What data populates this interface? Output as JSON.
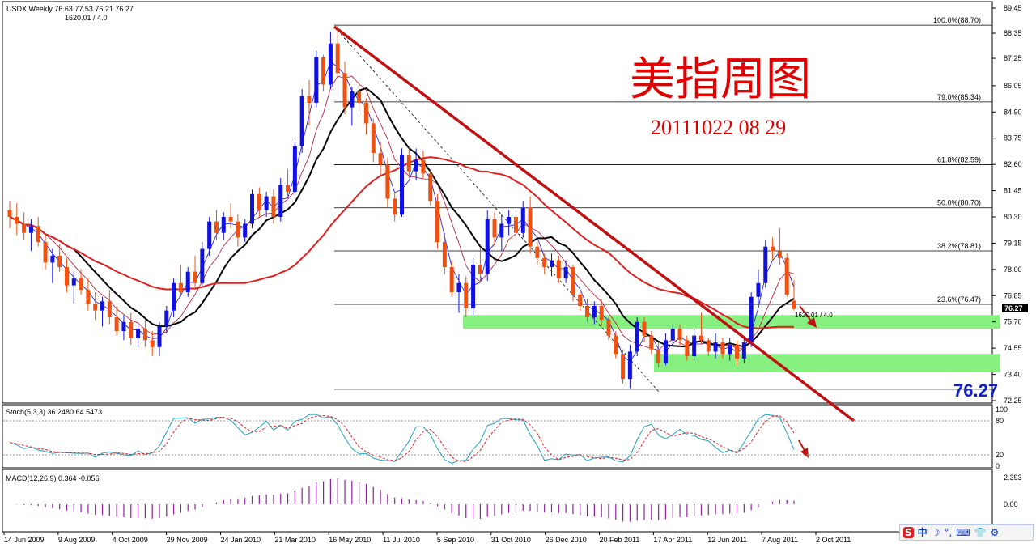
{
  "window": {
    "symbol_line": "USDX,Weekly  76.63 77.53 76.21 76.27",
    "sub_line": "1620.01 / 4.0",
    "current_price": "76.27",
    "fib_tag": "1620.01 / 4.0"
  },
  "overlay": {
    "title_cn": "美指周图",
    "date_text": "20111022 08 29"
  },
  "chart_data": [
    {
      "type": "candlestick",
      "title": "USDX,Weekly",
      "price_axis_ticks": [
        "89.45",
        "88.35",
        "87.25",
        "86.05",
        "84.90",
        "83.75",
        "82.60",
        "81.45",
        "80.30",
        "79.15",
        "78.00",
        "76.85",
        "75.70",
        "74.55",
        "73.40",
        "72.25"
      ],
      "ylim": [
        71.8,
        89.7
      ],
      "x_tick_labels": [
        "14 Jun 2009",
        "9 Aug 2009",
        "4 Oct 2009",
        "29 Nov 2009",
        "24 Jan 2010",
        "21 Mar 2010",
        "16 May 2010",
        "11 Jul 2010",
        "5 Sep 2010",
        "31 Oct 2010",
        "26 Dec 2010",
        "20 Feb 2011",
        "17 Apr 2011",
        "12 Jun 2011",
        "7 Aug 2011",
        "2 Oct 2011"
      ],
      "ohlc": [
        [
          80.6,
          81.0,
          79.8,
          80.3
        ],
        [
          80.3,
          80.9,
          79.5,
          80.0
        ],
        [
          80.0,
          80.5,
          79.3,
          79.6
        ],
        [
          79.6,
          80.2,
          78.8,
          79.9
        ],
        [
          79.9,
          80.3,
          79.0,
          79.2
        ],
        [
          79.2,
          79.6,
          78.0,
          78.3
        ],
        [
          78.3,
          78.9,
          77.4,
          78.6
        ],
        [
          78.6,
          79.1,
          77.9,
          78.1
        ],
        [
          78.1,
          78.5,
          77.0,
          77.3
        ],
        [
          77.3,
          77.9,
          76.5,
          77.6
        ],
        [
          77.6,
          78.0,
          76.9,
          77.1
        ],
        [
          77.1,
          77.6,
          76.2,
          76.5
        ],
        [
          76.5,
          77.0,
          75.8,
          76.2
        ],
        [
          76.2,
          76.8,
          75.5,
          76.6
        ],
        [
          76.6,
          77.1,
          75.6,
          75.9
        ],
        [
          75.9,
          76.4,
          75.1,
          75.3
        ],
        [
          75.3,
          76.0,
          74.9,
          75.7
        ],
        [
          75.7,
          76.1,
          74.7,
          75.0
        ],
        [
          75.0,
          75.6,
          74.6,
          75.4
        ],
        [
          75.4,
          75.8,
          74.6,
          74.9
        ],
        [
          74.9,
          75.3,
          74.2,
          74.6
        ],
        [
          74.6,
          75.7,
          74.2,
          75.5
        ],
        [
          75.5,
          76.4,
          75.2,
          76.2
        ],
        [
          76.2,
          77.6,
          75.9,
          77.4
        ],
        [
          77.4,
          78.2,
          76.8,
          77.0
        ],
        [
          77.0,
          78.1,
          76.8,
          77.9
        ],
        [
          77.9,
          78.6,
          77.1,
          77.4
        ],
        [
          77.4,
          79.2,
          77.3,
          78.9
        ],
        [
          78.9,
          80.3,
          78.6,
          80.1
        ],
        [
          80.1,
          80.6,
          79.3,
          79.6
        ],
        [
          79.6,
          80.5,
          79.3,
          80.3
        ],
        [
          80.3,
          80.9,
          79.8,
          80.1
        ],
        [
          80.1,
          80.4,
          79.0,
          79.4
        ],
        [
          79.4,
          80.2,
          79.2,
          80.0
        ],
        [
          80.0,
          81.5,
          79.8,
          81.3
        ],
        [
          81.3,
          81.6,
          80.3,
          80.6
        ],
        [
          80.6,
          81.4,
          80.3,
          81.2
        ],
        [
          81.2,
          81.5,
          80.0,
          80.3
        ],
        [
          80.3,
          82.0,
          80.1,
          81.7
        ],
        [
          81.7,
          82.4,
          81.2,
          81.4
        ],
        [
          81.4,
          83.6,
          81.3,
          83.4
        ],
        [
          83.4,
          85.9,
          83.1,
          85.6
        ],
        [
          85.6,
          86.3,
          84.3,
          85.3
        ],
        [
          85.3,
          87.6,
          85.1,
          87.3
        ],
        [
          87.3,
          87.4,
          85.8,
          86.1
        ],
        [
          86.1,
          88.4,
          85.9,
          87.9
        ],
        [
          87.9,
          88.7,
          86.4,
          86.6
        ],
        [
          86.6,
          87.1,
          84.8,
          85.1
        ],
        [
          85.1,
          86.0,
          84.3,
          85.8
        ],
        [
          85.8,
          86.1,
          84.9,
          85.3
        ],
        [
          85.3,
          85.5,
          83.9,
          84.4
        ],
        [
          84.4,
          84.6,
          82.7,
          83.1
        ],
        [
          83.1,
          83.6,
          82.1,
          82.6
        ],
        [
          82.6,
          82.9,
          80.7,
          81.1
        ],
        [
          81.1,
          81.4,
          80.1,
          80.4
        ],
        [
          80.4,
          83.3,
          80.3,
          83.0
        ],
        [
          83.0,
          83.4,
          82.0,
          82.3
        ],
        [
          82.3,
          83.3,
          81.9,
          82.8
        ],
        [
          82.8,
          83.2,
          82.0,
          82.2
        ],
        [
          82.2,
          82.4,
          80.8,
          81.0
        ],
        [
          81.0,
          81.3,
          78.9,
          79.2
        ],
        [
          79.2,
          79.6,
          77.8,
          78.1
        ],
        [
          78.1,
          78.4,
          76.8,
          77.0
        ],
        [
          77.0,
          77.8,
          76.1,
          77.4
        ],
        [
          77.4,
          77.7,
          75.9,
          76.3
        ],
        [
          76.3,
          78.5,
          76.0,
          78.2
        ],
        [
          78.2,
          79.0,
          77.4,
          77.8
        ],
        [
          77.8,
          80.6,
          77.5,
          80.2
        ],
        [
          80.2,
          80.5,
          79.0,
          79.4
        ],
        [
          79.4,
          80.4,
          78.8,
          80.0
        ],
        [
          80.0,
          80.6,
          79.5,
          80.3
        ],
        [
          80.3,
          80.6,
          79.3,
          79.6
        ],
        [
          79.6,
          81.0,
          79.4,
          80.7
        ],
        [
          80.7,
          81.2,
          78.7,
          79.0
        ],
        [
          79.0,
          79.2,
          78.2,
          78.5
        ],
        [
          78.5,
          78.7,
          77.8,
          78.1
        ],
        [
          78.1,
          78.7,
          77.7,
          78.4
        ],
        [
          78.4,
          78.6,
          77.4,
          77.6
        ],
        [
          77.6,
          78.4,
          77.4,
          78.1
        ],
        [
          78.1,
          78.2,
          76.6,
          76.9
        ],
        [
          76.9,
          77.0,
          76.2,
          76.4
        ],
        [
          76.4,
          76.7,
          75.7,
          75.9
        ],
        [
          75.9,
          76.6,
          75.6,
          76.4
        ],
        [
          76.4,
          76.7,
          75.5,
          75.8
        ],
        [
          75.8,
          75.9,
          74.9,
          75.1
        ],
        [
          75.1,
          75.3,
          74.1,
          74.3
        ],
        [
          74.3,
          74.5,
          73.0,
          73.2
        ],
        [
          73.2,
          74.7,
          72.8,
          74.4
        ],
        [
          74.4,
          75.9,
          74.2,
          75.7
        ],
        [
          75.7,
          75.9,
          74.8,
          75.1
        ],
        [
          75.1,
          75.3,
          74.3,
          74.5
        ],
        [
          74.5,
          74.8,
          73.7,
          73.9
        ],
        [
          73.9,
          75.2,
          73.8,
          74.9
        ],
        [
          74.9,
          75.6,
          74.6,
          75.4
        ],
        [
          75.4,
          75.6,
          74.6,
          74.9
        ],
        [
          74.9,
          75.1,
          74.0,
          74.2
        ],
        [
          74.2,
          75.4,
          74.0,
          75.1
        ],
        [
          75.1,
          76.1,
          74.7,
          74.9
        ],
        [
          74.9,
          75.0,
          74.2,
          74.4
        ],
        [
          74.4,
          75.2,
          74.1,
          74.8
        ],
        [
          74.8,
          75.0,
          74.1,
          74.3
        ],
        [
          74.3,
          75.0,
          74.0,
          74.7
        ],
        [
          74.7,
          74.9,
          73.8,
          74.1
        ],
        [
          74.1,
          75.0,
          73.9,
          74.8
        ],
        [
          74.8,
          77.0,
          74.6,
          76.8
        ],
        [
          76.8,
          78.0,
          76.5,
          77.4
        ],
        [
          77.4,
          79.3,
          77.2,
          79.0
        ],
        [
          79.0,
          79.4,
          78.4,
          78.8
        ],
        [
          78.8,
          79.8,
          78.2,
          78.5
        ],
        [
          78.5,
          78.7,
          76.8,
          76.9
        ],
        [
          76.63,
          77.53,
          76.21,
          76.27
        ]
      ],
      "fib_levels": [
        {
          "label": "100.0%(88.70)",
          "value": 88.7
        },
        {
          "label": "79.0%(85.34)",
          "value": 85.34
        },
        {
          "label": "61.8%(82.59)",
          "value": 82.59
        },
        {
          "label": "50.0%(80.70)",
          "value": 80.7
        },
        {
          "label": "38.2%(78.81)",
          "value": 78.81
        },
        {
          "label": "23.6%(76.47)",
          "value": 76.47
        },
        {
          "label": "",
          "value": 72.75
        }
      ],
      "support_zones": [
        {
          "from": 75.4,
          "to": 76.0
        },
        {
          "from": 73.5,
          "to": 74.3
        }
      ]
    },
    {
      "type": "line",
      "title": "Stoch(5,3,3) 36.2480 64.5473",
      "y_ticks": [
        "100",
        "80",
        "20",
        "0"
      ],
      "ylim": [
        0,
        100
      ],
      "levels": [
        80,
        20
      ]
    },
    {
      "type": "bar",
      "title": "MACD(12,26,9) 0.364 -0.056",
      "y_ticks": [
        "2.393",
        "0.00"
      ],
      "ylim": [
        -2.2,
        2.393
      ]
    }
  ],
  "tray": {
    "items": [
      "S",
      "中",
      "☽",
      "°,",
      "⌨",
      "👕",
      "⚙"
    ]
  },
  "colors": {
    "bull": "#1010e0",
    "bear": "#f05010",
    "ma_black": "#000000",
    "ma_red": "#e02020",
    "zone": "#88f080",
    "stoch_main": "#20a0c0",
    "stoch_sig": "#e02020",
    "macd": "#9020a0",
    "trend": "#c01010"
  }
}
